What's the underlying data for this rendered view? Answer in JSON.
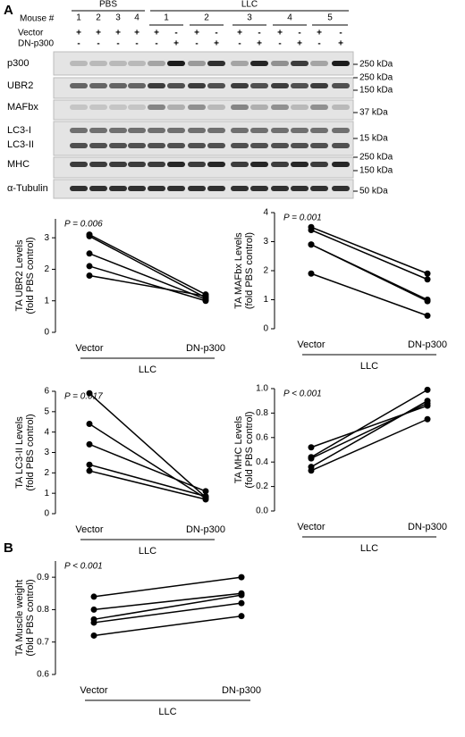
{
  "blot": {
    "panel": "A",
    "mouse_label": "Mouse #",
    "groups": [
      {
        "name": "PBS",
        "mice": [
          "1",
          "2",
          "3",
          "4"
        ]
      },
      {
        "name": "LLC",
        "mice": [
          "1",
          "2",
          "3",
          "4",
          "5"
        ]
      }
    ],
    "rows": [
      {
        "label": "Vector",
        "signs": [
          "+",
          "+",
          "+",
          "+",
          "+",
          "-",
          "+",
          "-",
          "+",
          "-",
          "+",
          "-",
          "+",
          "-"
        ]
      },
      {
        "label": "DN-p300",
        "signs": [
          "-",
          "-",
          "-",
          "-",
          "-",
          "+",
          "-",
          "+",
          "-",
          "+",
          "-",
          "+",
          "-",
          "+"
        ]
      }
    ],
    "bands": [
      "p300",
      "UBR2",
      "MAFbx",
      "LC3-I",
      "LC3-II",
      "MHC",
      "α-Tubulin"
    ],
    "markers": [
      "250 kDa",
      "250 kDa",
      "150 kDa",
      "37 kDa",
      "15 kDa",
      "250 kDa",
      "150 kDa",
      "50 kDa"
    ]
  },
  "panel_b": "B",
  "chart_data": [
    {
      "type": "line",
      "annotation": "P = 0.006",
      "ylabel": [
        "TA UBR2 Levels",
        "(fold PBS control)"
      ],
      "xlabel": "LLC",
      "categories": [
        "Vector",
        "DN-p300"
      ],
      "color": "#000000",
      "ylim": [
        0,
        3.6
      ],
      "yticks": [
        0,
        1,
        2,
        3
      ],
      "series": [
        {
          "values": [
            3.1,
            1.2
          ]
        },
        {
          "values": [
            3.05,
            1.1
          ]
        },
        {
          "values": [
            2.5,
            1.05
          ]
        },
        {
          "values": [
            2.1,
            1.0
          ]
        },
        {
          "values": [
            1.8,
            1.15
          ]
        }
      ]
    },
    {
      "type": "line",
      "annotation": "P = 0.001",
      "ylabel": [
        "TA MAFbx Levels",
        "(fold PBS control)"
      ],
      "xlabel": "LLC",
      "categories": [
        "Vector",
        "DN-p300"
      ],
      "color": "#000000",
      "ylim": [
        0,
        4
      ],
      "yticks": [
        0,
        1,
        2,
        3,
        4
      ],
      "series": [
        {
          "values": [
            3.5,
            1.9
          ]
        },
        {
          "values": [
            3.4,
            1.7
          ]
        },
        {
          "values": [
            2.9,
            1.0
          ]
        },
        {
          "values": [
            2.9,
            0.95
          ]
        },
        {
          "values": [
            1.9,
            0.45
          ]
        }
      ]
    },
    {
      "type": "line",
      "annotation": "P = 0.017",
      "ylabel": [
        "TA LC3-II Levels",
        "(fold PBS control)"
      ],
      "xlabel": "LLC",
      "categories": [
        "Vector",
        "DN-p300"
      ],
      "color": "#000000",
      "ylim": [
        0,
        6
      ],
      "yticks": [
        0,
        1,
        2,
        3,
        4,
        5,
        6
      ],
      "series": [
        {
          "values": [
            5.9,
            0.8
          ]
        },
        {
          "values": [
            4.4,
            0.75
          ]
        },
        {
          "values": [
            3.4,
            1.1
          ]
        },
        {
          "values": [
            2.4,
            0.85
          ]
        },
        {
          "values": [
            2.1,
            0.7
          ]
        }
      ]
    },
    {
      "type": "line",
      "annotation": "P < 0.001",
      "ylabel": [
        "TA MHC Levels",
        "(fold PBS control)"
      ],
      "xlabel": "LLC",
      "categories": [
        "Vector",
        "DN-p300"
      ],
      "color": "#000000",
      "ylim": [
        0,
        1.0
      ],
      "yticks": [
        {
          "value": 0,
          "label": "0.0"
        },
        0.2,
        0.4,
        0.6,
        0.8,
        {
          "value": 1,
          "label": "1.0"
        }
      ],
      "series": [
        {
          "values": [
            0.52,
            0.86
          ]
        },
        {
          "values": [
            0.44,
            0.99
          ]
        },
        {
          "values": [
            0.43,
            0.88
          ]
        },
        {
          "values": [
            0.36,
            0.9
          ]
        },
        {
          "values": [
            0.33,
            0.75
          ]
        }
      ]
    },
    {
      "type": "line",
      "annotation": "P < 0.001",
      "ylabel": [
        "TA Muscle weight",
        "(fold PBS control)"
      ],
      "xlabel": "LLC",
      "categories": [
        "Vector",
        "DN-p300"
      ],
      "color": "#000000",
      "ylim": [
        0.6,
        0.95
      ],
      "yticks": [
        0.6,
        0.7,
        0.8,
        0.9
      ],
      "series": [
        {
          "values": [
            0.84,
            0.9
          ]
        },
        {
          "values": [
            0.8,
            0.85
          ]
        },
        {
          "values": [
            0.77,
            0.845
          ]
        },
        {
          "values": [
            0.76,
            0.82
          ]
        },
        {
          "values": [
            0.72,
            0.78
          ]
        }
      ]
    }
  ]
}
